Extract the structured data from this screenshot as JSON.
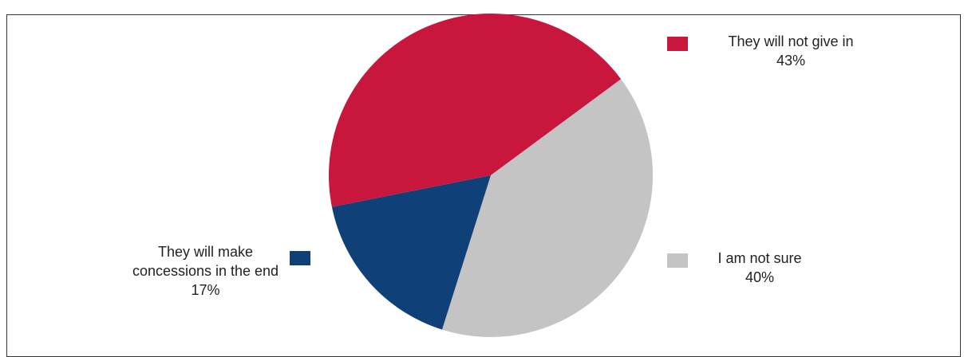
{
  "chart_data": {
    "type": "pie",
    "categories": [
      "They will not give in",
      "I am not sure",
      "They will make concessions in the end"
    ],
    "values": [
      43,
      40,
      17
    ],
    "value_labels": [
      "43%",
      "40%",
      "17%"
    ],
    "colors": [
      "#c8163c",
      "#c4c4c4",
      "#0f4178"
    ]
  }
}
